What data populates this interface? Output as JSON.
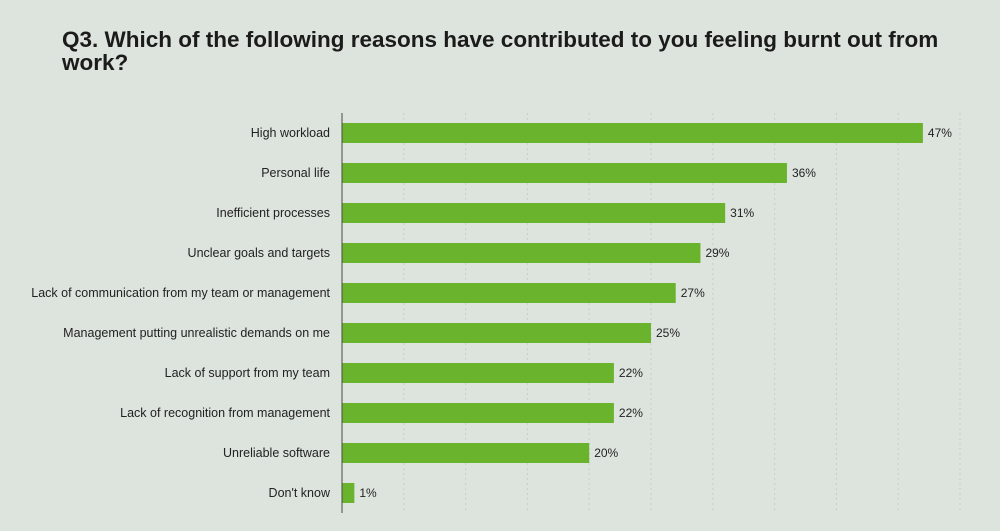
{
  "page": {
    "title": "Q3. Which of the following reasons have contributed to you feeling burnt out from work?"
  },
  "chart_data": {
    "type": "bar",
    "orientation": "horizontal",
    "title": "Q3. Which of the following reasons have contributed to you feeling burnt out from work?",
    "xlabel": "",
    "ylabel": "",
    "categories": [
      "High workload",
      "Personal life",
      "Inefficient processes",
      "Unclear goals and targets",
      "Lack of communication from my team or management",
      "Management putting unrealistic demands on me",
      "Lack of support from my team",
      "Lack of recognition from management",
      "Unreliable software",
      "Don't know"
    ],
    "values": [
      47,
      36,
      31,
      29,
      27,
      25,
      22,
      22,
      20,
      1
    ],
    "value_labels": [
      "47%",
      "36%",
      "31%",
      "29%",
      "27%",
      "25%",
      "22%",
      "22%",
      "20%",
      "1%"
    ],
    "unit": "%",
    "xlim": [
      0,
      50
    ],
    "grid": "vertical dashed",
    "legend": "none",
    "colors": {
      "bar": "#6ab42d",
      "background": "#dde3dd",
      "gridline": "#c7cec7",
      "axis": "#4a4a4a",
      "text": "#222222"
    }
  }
}
